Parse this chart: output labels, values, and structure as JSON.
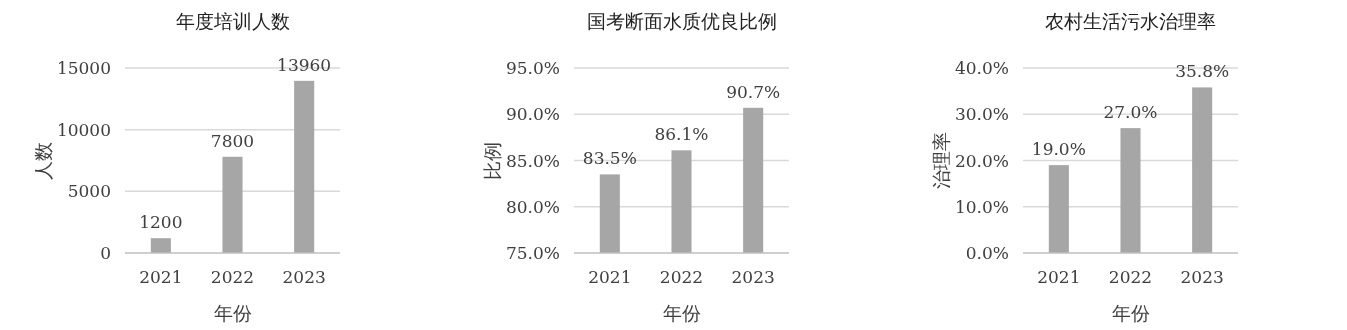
{
  "chart_data": [
    {
      "type": "bar",
      "title": "年度培训人数",
      "xlabel": "年份",
      "ylabel": "人数",
      "categories": [
        "2021",
        "2022",
        "2023"
      ],
      "values": [
        1200,
        7800,
        13960
      ],
      "color": "#a6a6a6",
      "ylim": [
        0,
        15000
      ],
      "yticks": [
        0,
        5000,
        10000,
        15000
      ],
      "grid": "y",
      "data_labels": true
    },
    {
      "type": "bar",
      "title": "国考断面水质优良比例",
      "xlabel": "年份",
      "ylabel": "比例",
      "categories": [
        "2021",
        "2022",
        "2023"
      ],
      "values": [
        83.5,
        86.1,
        90.7
      ],
      "value_labels": [
        "83.5%",
        "86.1%",
        "90.7%"
      ],
      "color": "#a6a6a6",
      "ylim": [
        75,
        95
      ],
      "yticks": [
        {
          "value": 75,
          "label": "75.0%"
        },
        {
          "value": 80,
          "label": "80.0%"
        },
        {
          "value": 85,
          "label": "85.0%"
        },
        {
          "value": 90,
          "label": "90.0%"
        },
        {
          "value": 95,
          "label": "95.0%"
        }
      ],
      "grid": "y"
    },
    {
      "type": "bar",
      "title": "农村生活污水治理率",
      "xlabel": "年份",
      "ylabel": "治理率",
      "categories": [
        "2021",
        "2022",
        "2023"
      ],
      "values": [
        19.0,
        27.0,
        35.8
      ],
      "value_labels": [
        "19.0%",
        "27.0%",
        "35.8%"
      ],
      "color": "#a6a6a6",
      "ylim": [
        0,
        40
      ],
      "yticks": [
        {
          "value": 0,
          "label": "0.0%"
        },
        {
          "value": 10,
          "label": "10.0%"
        },
        {
          "value": 20,
          "label": "20.0%"
        },
        {
          "value": 30,
          "label": "30.0%"
        },
        {
          "value": 40,
          "label": "40.0%"
        }
      ],
      "grid": "y"
    }
  ]
}
